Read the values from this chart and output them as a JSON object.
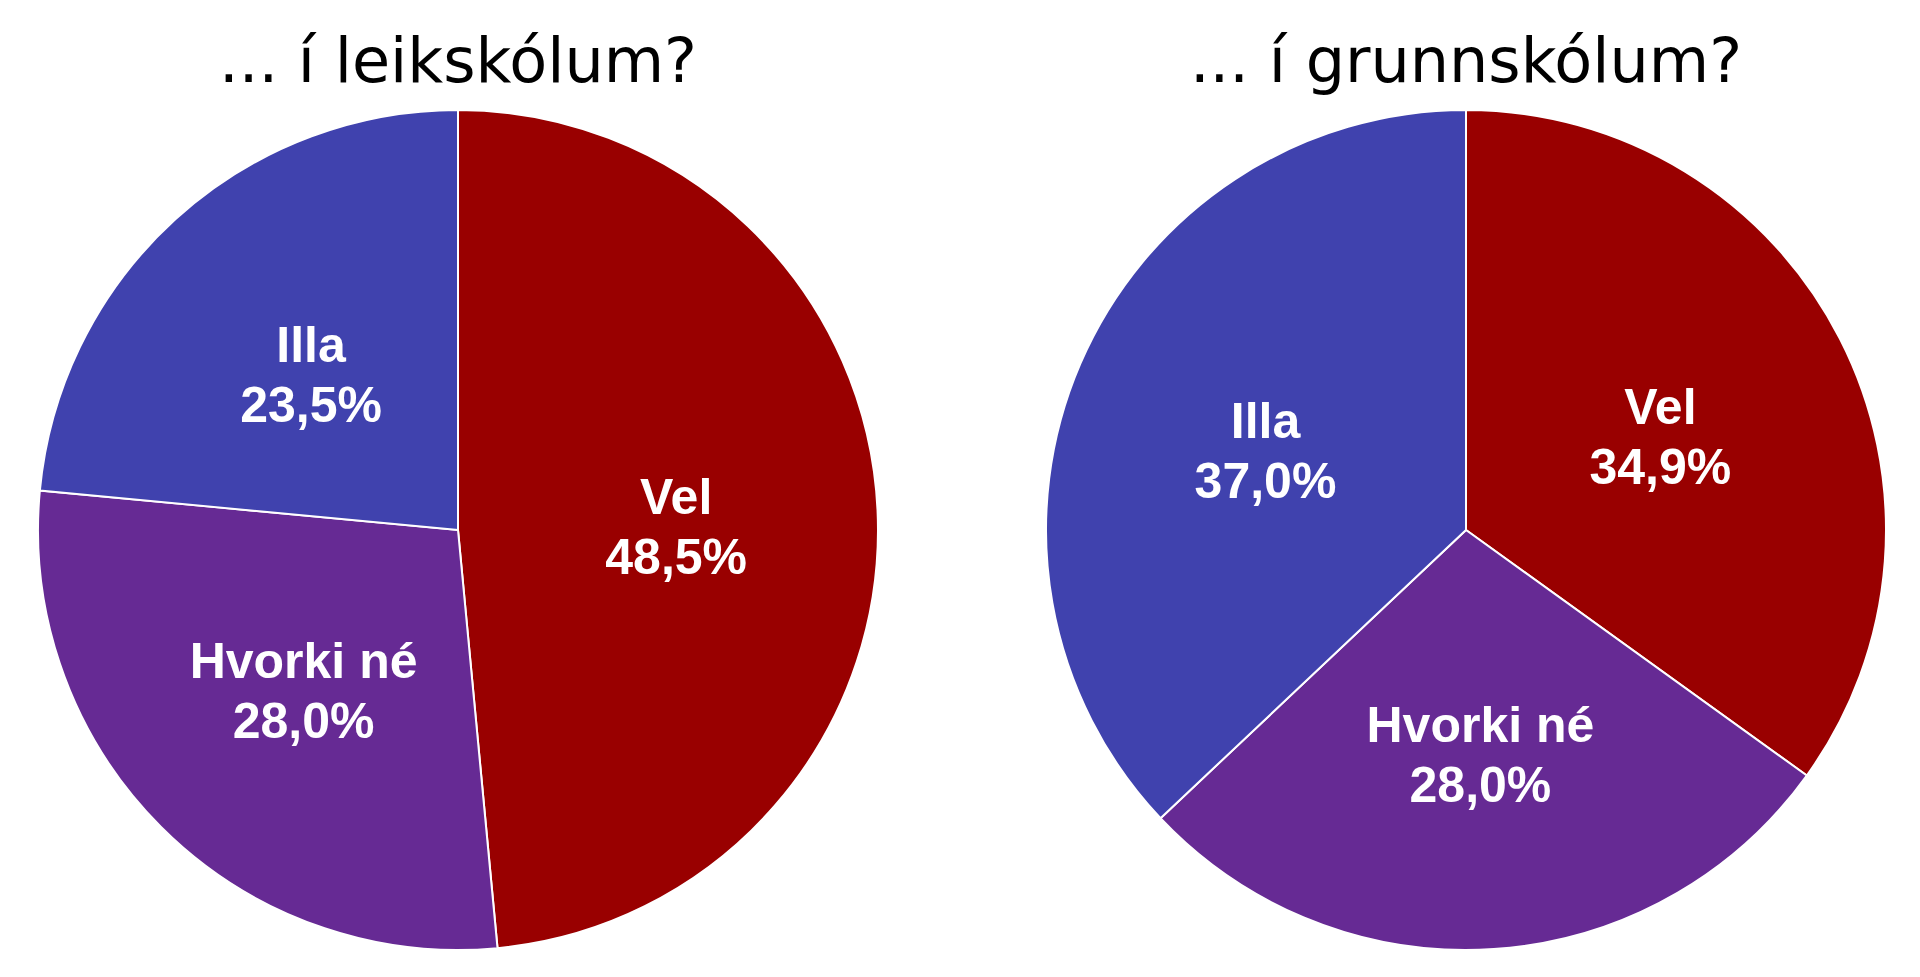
{
  "chart_data": [
    {
      "type": "pie",
      "title": "... í leikskólum?",
      "categories": [
        "Vel",
        "Hvorki né",
        "Illa"
      ],
      "values": [
        48.5,
        28.0,
        23.5
      ],
      "colors": [
        "#990000",
        "#662a94",
        "#4042ae"
      ],
      "value_labels": [
        "48,5%",
        "28,0%",
        "23,5%"
      ]
    },
    {
      "type": "pie",
      "title": "... í grunnskólum?",
      "categories": [
        "Vel",
        "Hvorki né",
        "Illa"
      ],
      "values": [
        34.9,
        28.0,
        37.0
      ],
      "colors": [
        "#990000",
        "#662a94",
        "#4042ae"
      ],
      "value_labels": [
        "34,9%",
        "28,0%",
        "37,0%"
      ]
    }
  ]
}
